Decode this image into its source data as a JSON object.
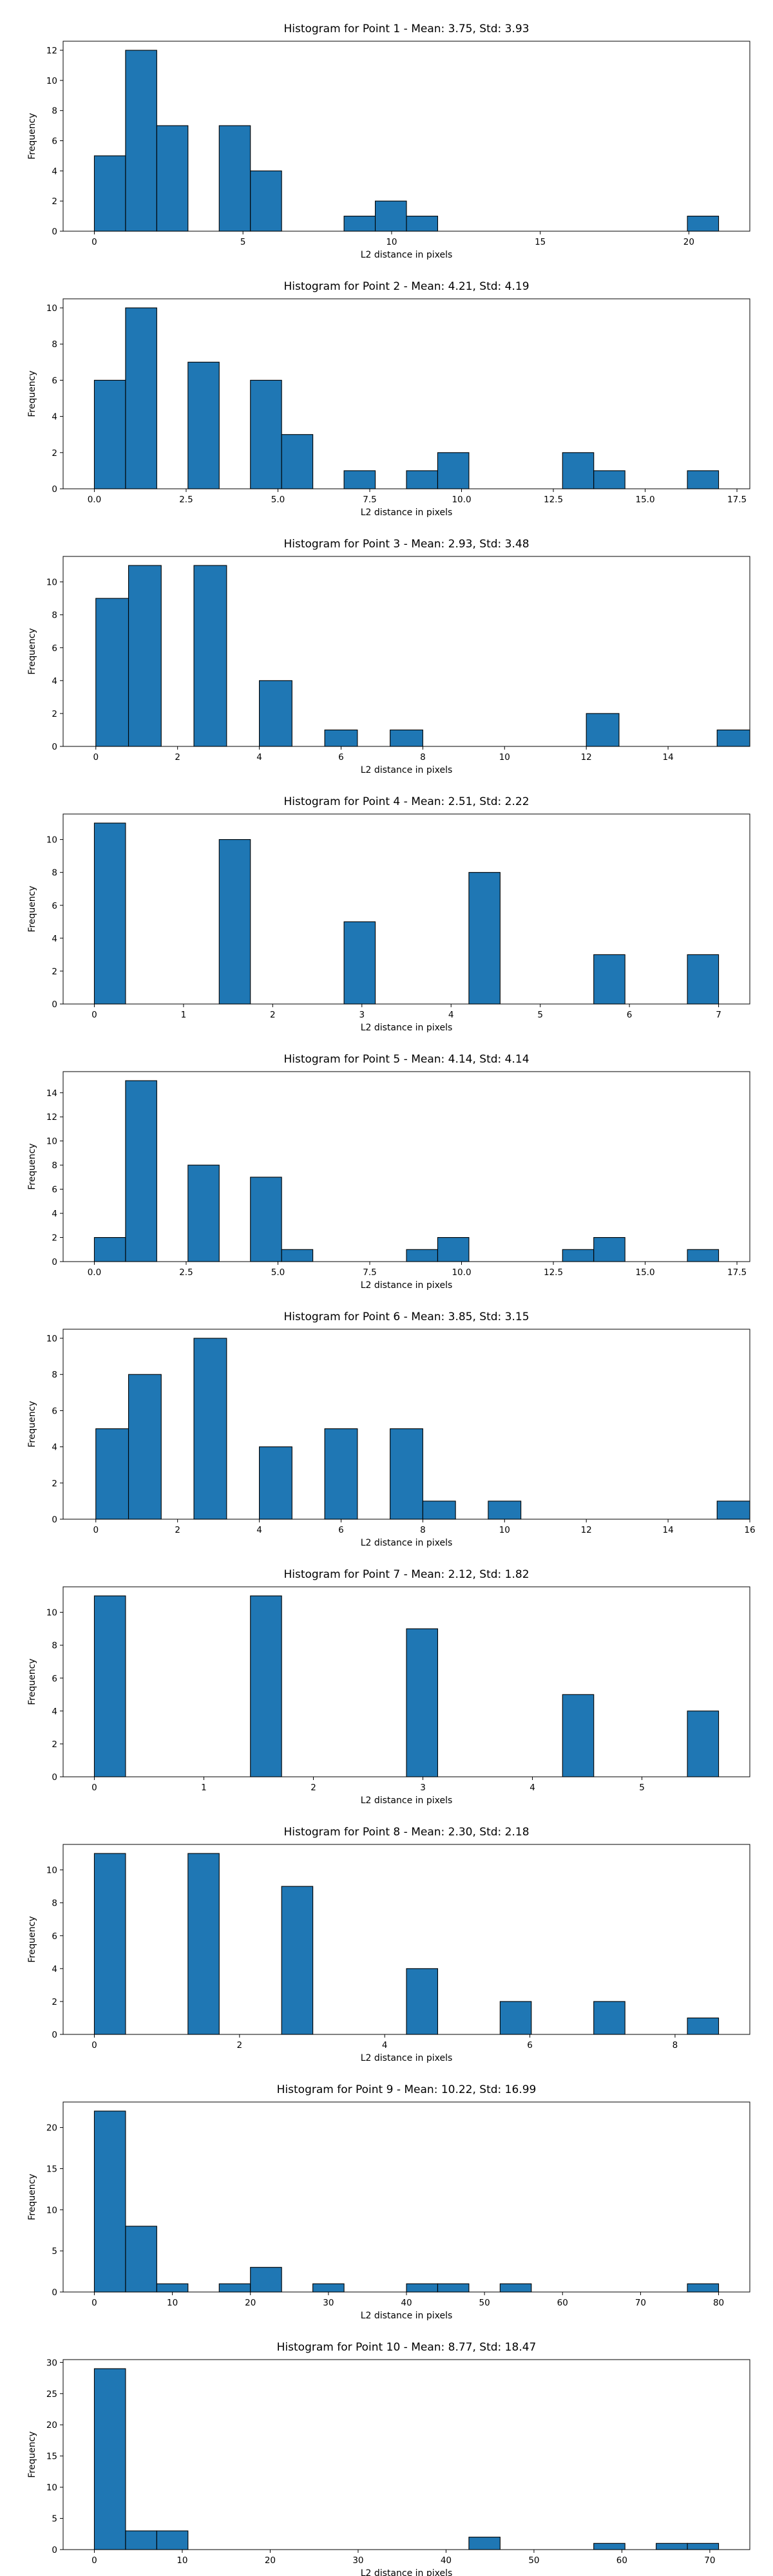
{
  "chart_data": [
    {
      "type": "bar",
      "title": "Histogram for Point 1 - Mean: 3.75, Std: 3.93",
      "xlabel": "L2 distance in pixels",
      "ylabel": "Frequency",
      "xlim": [
        -1.05,
        22.05
      ],
      "ylim": [
        0,
        12.6
      ],
      "xticks": [
        0,
        5,
        10,
        15,
        20
      ],
      "yticks": [
        0,
        2,
        4,
        6,
        8,
        10,
        12
      ],
      "bin_edges": [
        0.0,
        1.05,
        2.1,
        3.15,
        4.2,
        5.25,
        6.3,
        7.35,
        8.4,
        9.45,
        10.5,
        11.55,
        12.6,
        13.65,
        14.7,
        15.75,
        16.8,
        17.85,
        18.9,
        19.95,
        21.0
      ],
      "values": [
        5,
        12,
        7,
        0,
        7,
        4,
        0,
        0,
        1,
        2,
        1,
        0,
        0,
        0,
        0,
        0,
        0,
        0,
        0,
        1
      ]
    },
    {
      "type": "bar",
      "title": "Histogram for Point 2 - Mean: 4.21, Std: 4.19",
      "xlabel": "L2 distance in pixels",
      "ylabel": "Frequency",
      "xlim": [
        -0.85,
        17.85
      ],
      "ylim": [
        0,
        10.5
      ],
      "xticks": [
        0.0,
        2.5,
        5.0,
        7.5,
        10.0,
        12.5,
        15.0,
        17.5
      ],
      "xtick_labels": [
        "0.0",
        "2.5",
        "5.0",
        "7.5",
        "10.0",
        "12.5",
        "15.0",
        "17.5"
      ],
      "yticks": [
        0,
        2,
        4,
        6,
        8,
        10
      ],
      "bin_edges": [
        0.0,
        0.85,
        1.7,
        2.55,
        3.4,
        4.25,
        5.1,
        5.95,
        6.8,
        7.65,
        8.5,
        9.35,
        10.2,
        11.05,
        11.9,
        12.75,
        13.6,
        14.45,
        15.3,
        16.15,
        17.0
      ],
      "values": [
        6,
        10,
        0,
        7,
        0,
        6,
        3,
        0,
        1,
        0,
        1,
        2,
        0,
        0,
        0,
        2,
        1,
        0,
        0,
        1
      ]
    },
    {
      "type": "bar",
      "title": "Histogram for Point 3 - Mean: 2.93, Std: 3.48",
      "xlabel": "L2 distance in pixels",
      "ylabel": "Frequency",
      "xlim": [
        -0.8,
        16.0
      ],
      "ylim": [
        0,
        11.55
      ],
      "xticks": [
        0,
        2,
        4,
        6,
        8,
        10,
        12,
        14
      ],
      "yticks": [
        0,
        2,
        4,
        6,
        8,
        10
      ],
      "bin_edges": [
        0.0,
        0.8,
        1.6,
        2.4,
        3.2,
        4.0,
        4.8,
        5.6,
        6.4,
        7.2,
        8.0,
        8.8,
        9.6,
        10.4,
        11.2,
        12.0,
        12.8,
        13.6,
        14.4,
        15.2,
        16.0
      ],
      "values": [
        9,
        11,
        0,
        11,
        0,
        4,
        0,
        1,
        0,
        1,
        0,
        0,
        0,
        0,
        0,
        2,
        0,
        0,
        0,
        1
      ]
    },
    {
      "type": "bar",
      "title": "Histogram for Point 4 - Mean: 2.51, Std: 2.22",
      "xlabel": "L2 distance in pixels",
      "ylabel": "Frequency",
      "xlim": [
        -0.35,
        7.35
      ],
      "ylim": [
        0,
        11.55
      ],
      "xticks": [
        0,
        1,
        2,
        3,
        4,
        5,
        6,
        7
      ],
      "yticks": [
        0,
        2,
        4,
        6,
        8,
        10
      ],
      "bin_edges": [
        0.0,
        0.35,
        0.7,
        1.05,
        1.4,
        1.75,
        2.1,
        2.45,
        2.8,
        3.15,
        3.5,
        3.85,
        4.2,
        4.55,
        4.9,
        5.25,
        5.6,
        5.95,
        6.3,
        6.65,
        7.0
      ],
      "values": [
        11,
        0,
        0,
        0,
        10,
        0,
        0,
        0,
        5,
        0,
        0,
        0,
        8,
        0,
        0,
        0,
        3,
        0,
        0,
        3
      ]
    },
    {
      "type": "bar",
      "title": "Histogram for Point 5 - Mean: 4.14, Std: 4.14",
      "xlabel": "L2 distance in pixels",
      "ylabel": "Frequency",
      "xlim": [
        -0.85,
        17.85
      ],
      "ylim": [
        0,
        15.75
      ],
      "xticks": [
        0.0,
        2.5,
        5.0,
        7.5,
        10.0,
        12.5,
        15.0,
        17.5
      ],
      "xtick_labels": [
        "0.0",
        "2.5",
        "5.0",
        "7.5",
        "10.0",
        "12.5",
        "15.0",
        "17.5"
      ],
      "yticks": [
        0,
        2,
        4,
        6,
        8,
        10,
        12,
        14
      ],
      "bin_edges": [
        0.0,
        0.85,
        1.7,
        2.55,
        3.4,
        4.25,
        5.1,
        5.95,
        6.8,
        7.65,
        8.5,
        9.35,
        10.2,
        11.05,
        11.9,
        12.75,
        13.6,
        14.45,
        15.3,
        16.15,
        17.0
      ],
      "values": [
        2,
        15,
        0,
        8,
        0,
        7,
        1,
        0,
        0,
        0,
        1,
        2,
        0,
        0,
        0,
        1,
        2,
        0,
        0,
        1
      ]
    },
    {
      "type": "bar",
      "title": "Histogram for Point 6 - Mean: 3.85, Std: 3.15",
      "xlabel": "L2 distance in pixels",
      "ylabel": "Frequency",
      "xlim": [
        -0.8,
        16.0
      ],
      "ylim": [
        0,
        10.5
      ],
      "xticks": [
        0,
        2,
        4,
        6,
        8,
        10,
        12,
        14,
        16
      ],
      "yticks": [
        0,
        2,
        4,
        6,
        8,
        10
      ],
      "bin_edges": [
        0.0,
        0.8,
        1.6,
        2.4,
        3.2,
        4.0,
        4.8,
        5.6,
        6.4,
        7.2,
        8.0,
        8.8,
        9.6,
        10.4,
        11.2,
        12.0,
        12.8,
        13.6,
        14.4,
        15.2,
        16.0
      ],
      "values": [
        5,
        8,
        0,
        10,
        0,
        4,
        0,
        5,
        0,
        5,
        1,
        0,
        1,
        0,
        0,
        0,
        0,
        0,
        0,
        1
      ]
    },
    {
      "type": "bar",
      "title": "Histogram for Point 7 - Mean: 2.12, Std: 1.82",
      "xlabel": "L2 distance in pixels",
      "ylabel": "Frequency",
      "xlim": [
        -0.285,
        5.985
      ],
      "ylim": [
        0,
        11.55
      ],
      "xticks": [
        0,
        1,
        2,
        3,
        4,
        5
      ],
      "yticks": [
        0,
        2,
        4,
        6,
        8,
        10
      ],
      "bin_edges": [
        0.0,
        0.285,
        0.57,
        0.855,
        1.14,
        1.425,
        1.71,
        1.995,
        2.28,
        2.565,
        2.85,
        3.135,
        3.42,
        3.705,
        3.99,
        4.275,
        4.56,
        4.845,
        5.13,
        5.415,
        5.7
      ],
      "values": [
        11,
        0,
        0,
        0,
        0,
        11,
        0,
        0,
        0,
        0,
        9,
        0,
        0,
        0,
        0,
        5,
        0,
        0,
        0,
        4
      ]
    },
    {
      "type": "bar",
      "title": "Histogram for Point 8 - Mean: 2.30, Std: 2.18",
      "xlabel": "L2 distance in pixels",
      "ylabel": "Frequency",
      "xlim": [
        -0.43,
        9.03
      ],
      "ylim": [
        0,
        11.55
      ],
      "xticks": [
        0,
        2,
        4,
        6,
        8
      ],
      "yticks": [
        0,
        2,
        4,
        6,
        8,
        10
      ],
      "bin_edges": [
        0.0,
        0.43,
        0.86,
        1.29,
        1.72,
        2.15,
        2.58,
        3.01,
        3.44,
        3.87,
        4.3,
        4.73,
        5.16,
        5.59,
        6.02,
        6.45,
        6.88,
        7.31,
        7.74,
        8.17,
        8.6
      ],
      "values": [
        11,
        0,
        0,
        11,
        0,
        0,
        9,
        0,
        0,
        0,
        4,
        0,
        0,
        2,
        0,
        0,
        2,
        0,
        0,
        1
      ]
    },
    {
      "type": "bar",
      "title": "Histogram for Point 9 - Mean: 10.22, Std: 16.99",
      "xlabel": "L2 distance in pixels",
      "ylabel": "Frequency",
      "xlim": [
        -4.0,
        84.0
      ],
      "ylim": [
        0,
        23.1
      ],
      "xticks": [
        0,
        10,
        20,
        30,
        40,
        50,
        60,
        70,
        80
      ],
      "yticks": [
        0,
        5,
        10,
        15,
        20
      ],
      "bin_edges": [
        0,
        4,
        8,
        12,
        16,
        20,
        24,
        28,
        32,
        36,
        40,
        44,
        48,
        52,
        56,
        60,
        64,
        68,
        72,
        76,
        80
      ],
      "values": [
        22,
        8,
        1,
        0,
        1,
        3,
        0,
        1,
        0,
        0,
        1,
        1,
        0,
        1,
        0,
        0,
        0,
        0,
        0,
        1
      ]
    },
    {
      "type": "bar",
      "title": "Histogram for Point 10 - Mean: 8.77, Std: 18.47",
      "xlabel": "L2 distance in pixels",
      "ylabel": "Frequency",
      "xlim": [
        -3.55,
        74.55
      ],
      "ylim": [
        0,
        30.45
      ],
      "xticks": [
        0,
        10,
        20,
        30,
        40,
        50,
        60,
        70
      ],
      "yticks": [
        0,
        5,
        10,
        15,
        20,
        25,
        30
      ],
      "bin_edges": [
        0.0,
        3.55,
        7.1,
        10.65,
        14.2,
        17.75,
        21.3,
        24.85,
        28.4,
        31.95,
        35.5,
        39.05,
        42.6,
        46.15,
        49.7,
        53.25,
        56.8,
        60.35,
        63.9,
        67.45,
        71.0
      ],
      "values": [
        29,
        3,
        3,
        0,
        0,
        0,
        0,
        0,
        0,
        0,
        0,
        0,
        2,
        0,
        0,
        0,
        1,
        0,
        1,
        1
      ]
    }
  ],
  "style": {
    "bar_fill": "#1f77b4",
    "bar_edge": "#000000",
    "background": "#ffffff"
  }
}
